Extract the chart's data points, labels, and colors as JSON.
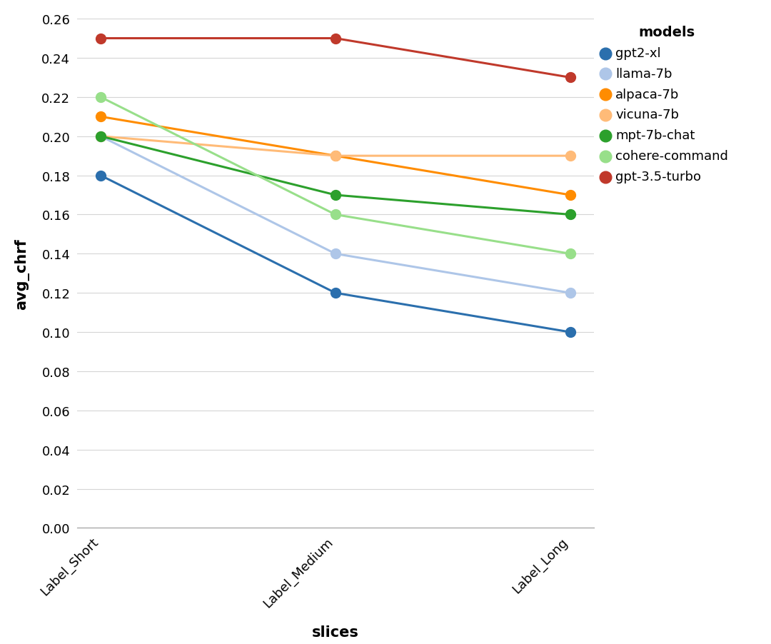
{
  "title": "",
  "xlabel": "slices",
  "ylabel": "avg_chrf",
  "x_labels": [
    "Label_Short",
    "Label_Medium",
    "Label_Long"
  ],
  "ylim": [
    0.0,
    0.26
  ],
  "yticks": [
    0.0,
    0.02,
    0.04,
    0.06,
    0.08,
    0.1,
    0.12,
    0.14,
    0.16,
    0.18,
    0.2,
    0.22,
    0.24,
    0.26
  ],
  "legend_title": "models",
  "series": [
    {
      "name": "gpt2-xl",
      "color": "#2b6fad",
      "values": [
        0.18,
        0.12,
        0.1
      ]
    },
    {
      "name": "llama-7b",
      "color": "#aec6e8",
      "values": [
        0.2,
        0.14,
        0.12
      ]
    },
    {
      "name": "alpaca-7b",
      "color": "#ff8c00",
      "values": [
        0.21,
        0.19,
        0.17
      ]
    },
    {
      "name": "vicuna-7b",
      "color": "#ffbb78",
      "values": [
        0.2,
        0.19,
        0.19
      ]
    },
    {
      "name": "mpt-7b-chat",
      "color": "#2ca02c",
      "values": [
        0.2,
        0.17,
        0.16
      ]
    },
    {
      "name": "cohere-command",
      "color": "#98df8a",
      "values": [
        0.22,
        0.16,
        0.14
      ]
    },
    {
      "name": "gpt-3.5-turbo",
      "color": "#c0392b",
      "values": [
        0.25,
        0.25,
        0.23
      ]
    }
  ],
  "background_color": "#ffffff",
  "grid_color": "#d5d5d5",
  "marker_size": 10,
  "line_width": 2.2,
  "legend_fontsize": 13,
  "legend_title_fontsize": 14,
  "axis_label_fontsize": 15,
  "tick_fontsize": 13
}
